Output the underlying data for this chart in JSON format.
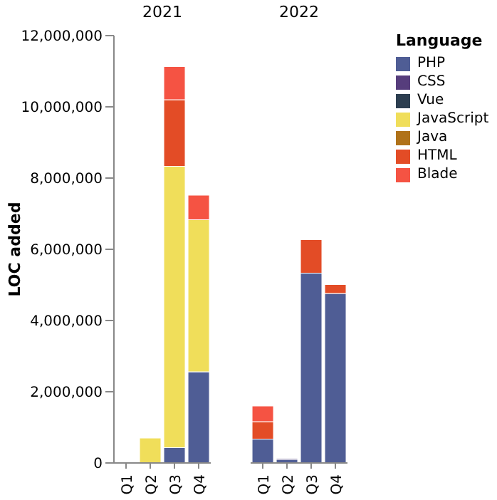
{
  "chart_data": [
    {
      "type": "bar",
      "title": "2021",
      "ylabel": "LOC added",
      "categories": [
        "Q1",
        "Q2",
        "Q3",
        "Q4"
      ],
      "stacked": true,
      "legend": "top right",
      "legend_title": "Language",
      "ylim": [
        0,
        12000000
      ],
      "yticks": [
        0,
        {
          "value": 2000000,
          "label": "2,000,000"
        },
        {
          "value": 4000000,
          "label": "4,000,000"
        },
        {
          "value": 6000000,
          "label": "6,000,000"
        },
        {
          "value": 8000000,
          "label": "8,000,000"
        },
        {
          "value": 10000000,
          "label": "10,000,000"
        },
        {
          "value": 12000000,
          "label": "12,000,000"
        }
      ],
      "series": [
        {
          "name": "PHP",
          "color": "#4f5d95",
          "values": [
            null,
            null,
            430000,
            2560000
          ]
        },
        {
          "name": "CSS",
          "color": "#563d7c",
          "values": [
            null,
            null,
            null,
            null
          ]
        },
        {
          "name": "Vue",
          "color": "#2c3e50",
          "values": [
            null,
            null,
            null,
            null
          ]
        },
        {
          "name": "JavaScript",
          "color": "#f0de5a",
          "values": [
            20000,
            700000,
            7900000,
            4270000
          ]
        },
        {
          "name": "Java",
          "color": "#b07219",
          "values": [
            null,
            null,
            null,
            null
          ]
        },
        {
          "name": "HTML",
          "color": "#e34c26",
          "values": [
            null,
            null,
            1870000,
            null
          ]
        },
        {
          "name": "Blade",
          "color": "#f55343",
          "values": [
            null,
            null,
            930000,
            690000
          ]
        }
      ]
    },
    {
      "type": "bar",
      "title": "2022",
      "categories": [
        "Q1",
        "Q2",
        "Q3",
        "Q4"
      ],
      "stacked": true,
      "ylim": [
        0,
        12000000
      ],
      "tick_labels": "x",
      "series": [
        {
          "color": "#4f5d95",
          "values": [
            670000,
            100000,
            5330000,
            4760000
          ]
        },
        {
          "color": "#563d7c",
          "values": [
            null,
            30000,
            null,
            null
          ]
        },
        {
          "color": "#e34c26",
          "values": [
            490000,
            null,
            940000,
            250000
          ]
        },
        {
          "color": "#f55343",
          "values": [
            440000,
            null,
            null,
            null
          ]
        }
      ]
    }
  ]
}
